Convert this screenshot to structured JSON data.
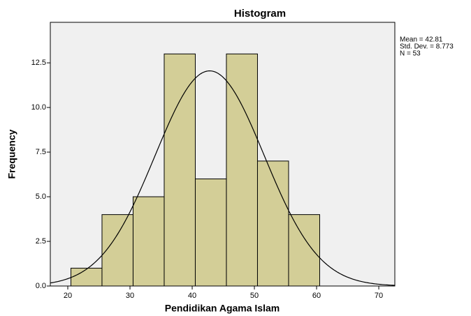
{
  "chart_data": {
    "type": "histogram",
    "title": "Histogram",
    "x_label": "Pendidikan Agama Islam",
    "y_label": "Frequency",
    "bins": [
      20.5,
      25.5,
      30.5,
      35.5,
      40.5,
      45.5,
      50.5,
      55.5,
      60.5
    ],
    "values": [
      1,
      4,
      5,
      13,
      6,
      13,
      7,
      4
    ],
    "color": "#d3ce97",
    "background": "#f0f0f0",
    "xlim": [
      17.19,
      72.58
    ],
    "xticks": [
      20,
      30,
      40,
      50,
      60,
      70
    ],
    "ylim": [
      0,
      14.77
    ],
    "yticks": [
      {
        "value": 0,
        "label": "0.0"
      },
      2.5,
      {
        "value": 5,
        "label": "5.0"
      },
      7.5,
      {
        "value": 10,
        "label": "10.0"
      },
      12.5
    ],
    "normal_curve": {
      "mean": 42.81,
      "std": 8.773,
      "n": 53
    },
    "annotations": [
      "Mean = 42.81",
      "Std. Dev. = 8.773",
      "N = 53"
    ]
  }
}
